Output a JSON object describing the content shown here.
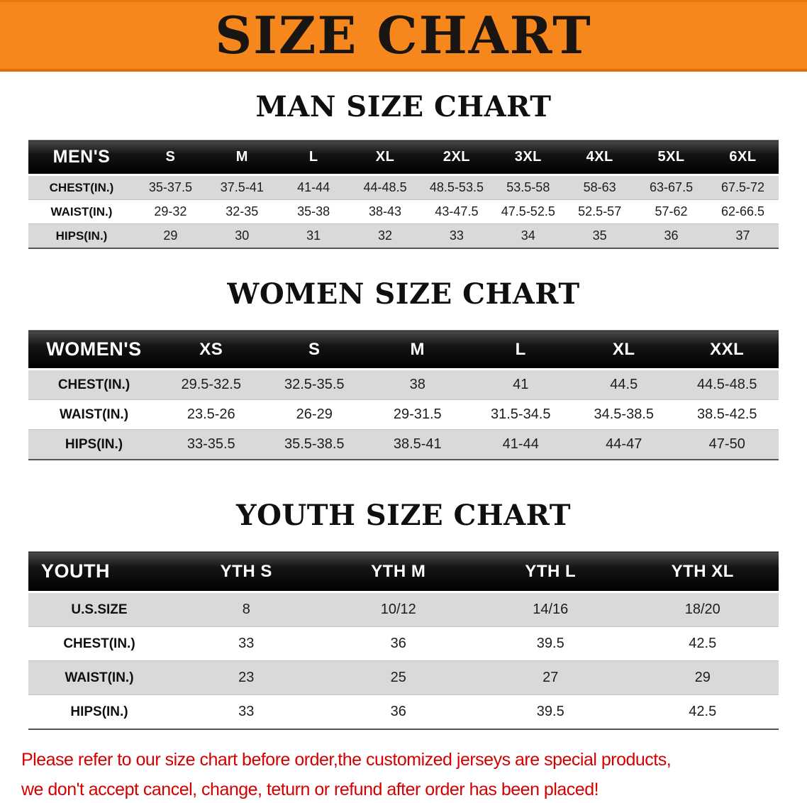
{
  "banner": {
    "title": "SIZE CHART"
  },
  "colors": {
    "banner_orange": "#f6871d",
    "table_header_black": "#111111",
    "stripe_gray": "#d9d9d9",
    "note_red": "#d40000"
  },
  "sections": [
    {
      "id": "men",
      "heading": "MAN SIZE CHART",
      "table": {
        "header": [
          "MEN'S",
          "S",
          "M",
          "L",
          "XL",
          "2XL",
          "3XL",
          "4XL",
          "5XL",
          "6XL"
        ],
        "rows": [
          [
            "CHEST(IN.)",
            "35-37.5",
            "37.5-41",
            "41-44",
            "44-48.5",
            "48.5-53.5",
            "53.5-58",
            "58-63",
            "63-67.5",
            "67.5-72"
          ],
          [
            "WAIST(IN.)",
            "29-32",
            "32-35",
            "35-38",
            "38-43",
            "43-47.5",
            "47.5-52.5",
            "52.5-57",
            "57-62",
            "62-66.5"
          ],
          [
            "HIPS(IN.)",
            "29",
            "30",
            "31",
            "32",
            "33",
            "34",
            "35",
            "36",
            "37"
          ]
        ]
      }
    },
    {
      "id": "women",
      "heading": "WOMEN SIZE CHART",
      "table": {
        "header": [
          "WOMEN'S",
          "XS",
          "S",
          "M",
          "L",
          "XL",
          "XXL"
        ],
        "rows": [
          [
            "CHEST(IN.)",
            "29.5-32.5",
            "32.5-35.5",
            "38",
            "41",
            "44.5",
            "44.5-48.5"
          ],
          [
            "WAIST(IN.)",
            "23.5-26",
            "26-29",
            "29-31.5",
            "31.5-34.5",
            "34.5-38.5",
            "38.5-42.5"
          ],
          [
            "HIPS(IN.)",
            "33-35.5",
            "35.5-38.5",
            "38.5-41",
            "41-44",
            "44-47",
            "47-50"
          ]
        ]
      }
    },
    {
      "id": "youth",
      "heading": "YOUTH SIZE CHART",
      "table": {
        "header": [
          "YOUTH",
          "YTH S",
          "YTH M",
          "YTH L",
          "YTH XL"
        ],
        "rows": [
          [
            "U.S.SIZE",
            "8",
            "10/12",
            "14/16",
            "18/20"
          ],
          [
            "CHEST(IN.)",
            "33",
            "36",
            "39.5",
            "42.5"
          ],
          [
            "WAIST(IN.)",
            "23",
            "25",
            "27",
            "29"
          ],
          [
            "HIPS(IN.)",
            "33",
            "36",
            "39.5",
            "42.5"
          ]
        ]
      }
    }
  ],
  "footer": {
    "line1": "Please refer to our size chart before order,the customized jerseys are special products,",
    "line2": "we don't accept cancel, change, teturn or refund after order has been placed!"
  }
}
